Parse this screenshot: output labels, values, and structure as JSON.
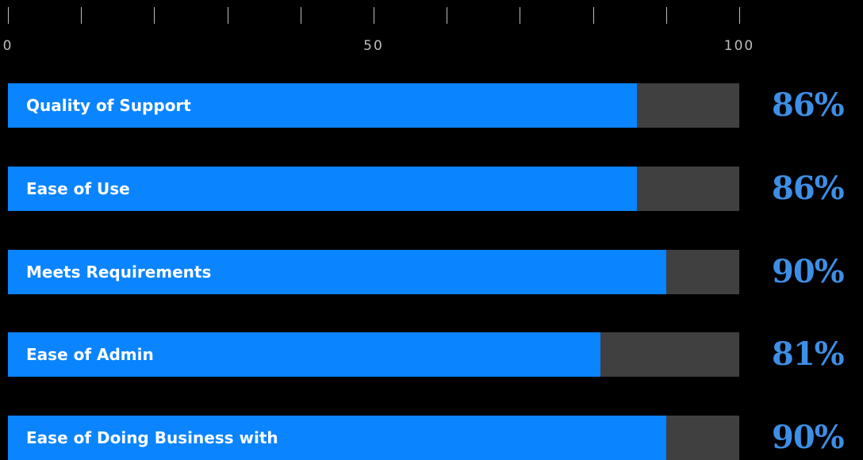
{
  "chart_data": {
    "type": "bar",
    "orientation": "horizontal",
    "categories": [
      "Quality of Support",
      "Ease of Use",
      "Meets Requirements",
      "Ease of Admin",
      "Ease of Doing Business with"
    ],
    "values": [
      86,
      86,
      90,
      81,
      90
    ],
    "value_labels": [
      "86%",
      "86%",
      "90%",
      "81%",
      "90%"
    ],
    "xlim": [
      0,
      100
    ],
    "x_tick_labels": [
      "0",
      "50",
      "100"
    ],
    "minor_tick_count": 11,
    "title": "",
    "xlabel": "",
    "ylabel": "",
    "grid": false,
    "colors": {
      "background": "#000000",
      "bar_fill": "#0a84ff",
      "bar_track": "#404040",
      "value_text": "#3d8fe6",
      "tick": "#bdbdbd"
    }
  }
}
